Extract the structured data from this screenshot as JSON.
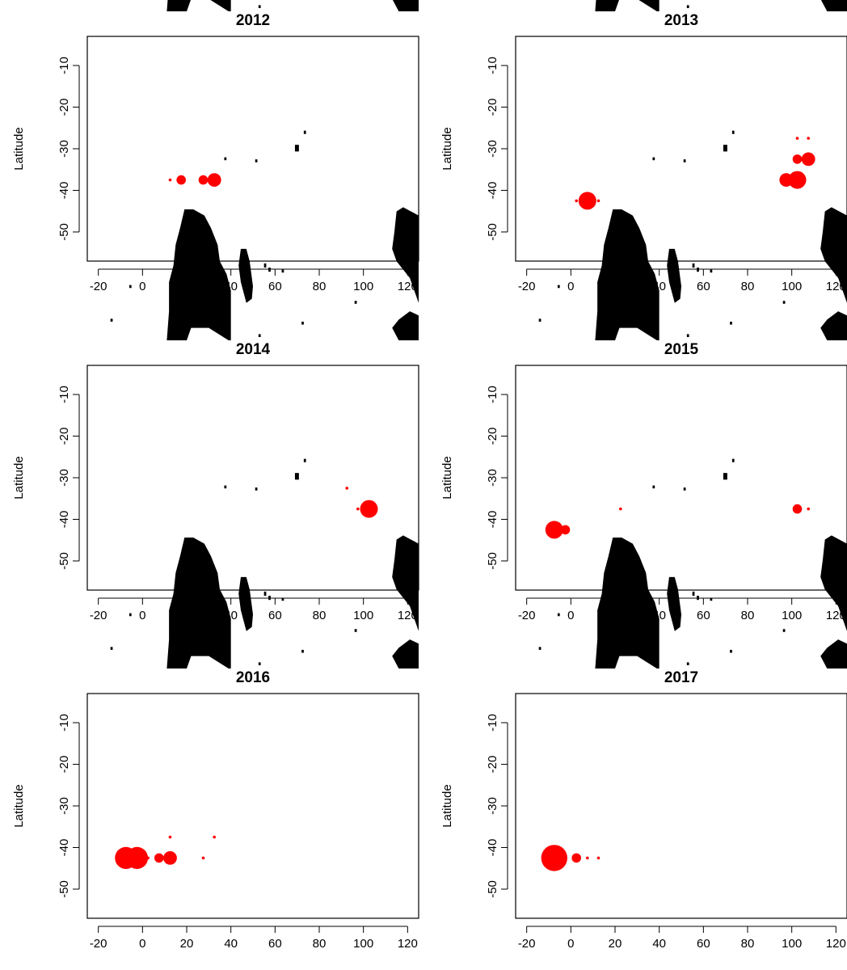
{
  "figure": {
    "marker_color": "#ff0000",
    "land_color": "#000000",
    "background": "#ffffff"
  },
  "chart_data": [
    {
      "type": "scatter",
      "title": "2012",
      "xlabel": "",
      "ylabel": "Latitude",
      "xlim": [
        -25,
        125
      ],
      "ylim": [
        -57,
        -3
      ],
      "xticks": [
        -20,
        0,
        20,
        40,
        60,
        80,
        100,
        120
      ],
      "yticks": [
        -10,
        -20,
        -30,
        -40,
        -50
      ],
      "grid": false,
      "points": [
        {
          "x": 12.5,
          "y": -37.5,
          "size": 1
        },
        {
          "x": 17.5,
          "y": -37.5,
          "size": 2
        },
        {
          "x": 27.5,
          "y": -37.5,
          "size": 2
        },
        {
          "x": 32.5,
          "y": -37.5,
          "size": 3
        }
      ]
    },
    {
      "type": "scatter",
      "title": "2013",
      "xlabel": "",
      "ylabel": "Latitude",
      "xlim": [
        -25,
        125
      ],
      "ylim": [
        -57,
        -3
      ],
      "xticks": [
        -20,
        0,
        20,
        40,
        60,
        80,
        100,
        120
      ],
      "yticks": [
        -10,
        -20,
        -30,
        -40,
        -50
      ],
      "grid": false,
      "points": [
        {
          "x": 2.5,
          "y": -42.5,
          "size": 1
        },
        {
          "x": 7.5,
          "y": -42.5,
          "size": 4
        },
        {
          "x": 12.5,
          "y": -42.5,
          "size": 1
        },
        {
          "x": 102.5,
          "y": -27.5,
          "size": 1
        },
        {
          "x": 107.5,
          "y": -27.5,
          "size": 1
        },
        {
          "x": 102.5,
          "y": -32.5,
          "size": 2
        },
        {
          "x": 107.5,
          "y": -32.5,
          "size": 3
        },
        {
          "x": 97.5,
          "y": -37.5,
          "size": 3
        },
        {
          "x": 102.5,
          "y": -37.5,
          "size": 4
        }
      ]
    },
    {
      "type": "scatter",
      "title": "2014",
      "xlabel": "",
      "ylabel": "Latitude",
      "xlim": [
        -25,
        125
      ],
      "ylim": [
        -57,
        -3
      ],
      "xticks": [
        -20,
        0,
        20,
        40,
        60,
        80,
        100,
        120
      ],
      "yticks": [
        -10,
        -20,
        -30,
        -40,
        -50
      ],
      "grid": false,
      "points": [
        {
          "x": 92.5,
          "y": -32.5,
          "size": 1
        },
        {
          "x": 97.5,
          "y": -37.5,
          "size": 1
        },
        {
          "x": 102.5,
          "y": -37.5,
          "size": 4
        }
      ]
    },
    {
      "type": "scatter",
      "title": "2015",
      "xlabel": "",
      "ylabel": "Latitude",
      "xlim": [
        -25,
        125
      ],
      "ylim": [
        -57,
        -3
      ],
      "xticks": [
        -20,
        0,
        20,
        40,
        60,
        80,
        100,
        120
      ],
      "yticks": [
        -10,
        -20,
        -30,
        -40,
        -50
      ],
      "grid": false,
      "points": [
        {
          "x": -7.5,
          "y": -42.5,
          "size": 4
        },
        {
          "x": -2.5,
          "y": -42.5,
          "size": 2
        },
        {
          "x": 22.5,
          "y": -37.5,
          "size": 1
        },
        {
          "x": 102.5,
          "y": -37.5,
          "size": 2
        },
        {
          "x": 107.5,
          "y": -37.5,
          "size": 1
        }
      ]
    },
    {
      "type": "scatter",
      "title": "2016",
      "xlabel": "",
      "ylabel": "Latitude",
      "xlim": [
        -25,
        125
      ],
      "ylim": [
        -57,
        -3
      ],
      "xticks": [
        -20,
        0,
        20,
        40,
        60,
        80,
        100,
        120
      ],
      "yticks": [
        -10,
        -20,
        -30,
        -40,
        -50
      ],
      "grid": false,
      "points": [
        {
          "x": -7.5,
          "y": -42.5,
          "size": 5
        },
        {
          "x": -2.5,
          "y": -42.5,
          "size": 5
        },
        {
          "x": 2.5,
          "y": -42.5,
          "size": 1
        },
        {
          "x": 7.5,
          "y": -42.5,
          "size": 2
        },
        {
          "x": 12.5,
          "y": -42.5,
          "size": 3
        },
        {
          "x": 12.5,
          "y": -37.5,
          "size": 1
        },
        {
          "x": 27.5,
          "y": -42.5,
          "size": 1
        },
        {
          "x": 32.5,
          "y": -37.5,
          "size": 1
        }
      ]
    },
    {
      "type": "scatter",
      "title": "2017",
      "xlabel": "",
      "ylabel": "Latitude",
      "xlim": [
        -25,
        125
      ],
      "ylim": [
        -57,
        -3
      ],
      "xticks": [
        -20,
        0,
        20,
        40,
        60,
        80,
        100,
        120
      ],
      "yticks": [
        -10,
        -20,
        -30,
        -40,
        -50
      ],
      "grid": false,
      "points": [
        {
          "x": -7.5,
          "y": -42.5,
          "size": 6
        },
        {
          "x": 2.5,
          "y": -42.5,
          "size": 2
        },
        {
          "x": 7.5,
          "y": -42.5,
          "size": 1
        },
        {
          "x": 12.5,
          "y": -42.5,
          "size": 1
        }
      ]
    }
  ]
}
